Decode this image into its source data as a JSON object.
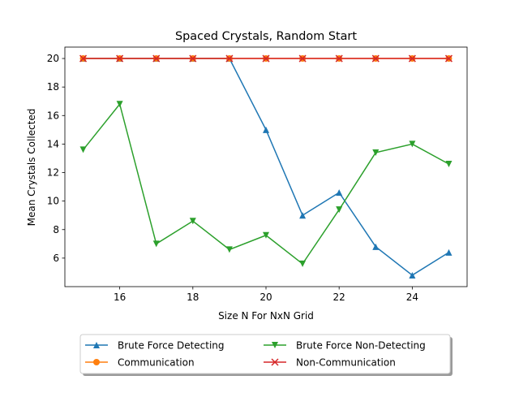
{
  "chart_data": {
    "type": "line",
    "title": "Spaced Crystals, Random Start",
    "xlabel": "Size N For NxN Grid",
    "ylabel": "Mean Crystals Collected",
    "x": [
      15,
      16,
      17,
      18,
      19,
      20,
      21,
      22,
      23,
      24,
      25
    ],
    "xlim": [
      14.5,
      25.5
    ],
    "ylim": [
      4.0,
      20.8
    ],
    "xticks": [
      16,
      18,
      20,
      22,
      24
    ],
    "yticks": [
      6,
      8,
      10,
      12,
      14,
      16,
      18,
      20
    ],
    "grid": false,
    "legend_placement": "below plot, two columns",
    "series": [
      {
        "name": "Brute Force Detecting",
        "color": "#1f77b4",
        "marker": "triangle-up",
        "values": [
          20,
          20,
          20,
          20,
          20,
          15,
          9,
          10.6,
          6.8,
          4.8,
          6.4
        ]
      },
      {
        "name": "Communication",
        "color": "#ff7f0e",
        "marker": "circle",
        "values": [
          20,
          20,
          20,
          20,
          20,
          20,
          20,
          20,
          20,
          20,
          20
        ]
      },
      {
        "name": "Non-Communication",
        "color": "#d62728",
        "marker": "x",
        "values": [
          20,
          20,
          20,
          20,
          20,
          20,
          20,
          20,
          20,
          20,
          20
        ]
      },
      {
        "name": "Brute Force Non-Detecting",
        "color": "#2ca02c",
        "marker": "triangle-down",
        "values": [
          13.6,
          16.8,
          7.0,
          8.6,
          6.6,
          7.6,
          5.6,
          9.4,
          13.4,
          14.0,
          12.6
        ]
      }
    ],
    "legend_order": [
      0,
      1,
      3,
      2
    ]
  }
}
